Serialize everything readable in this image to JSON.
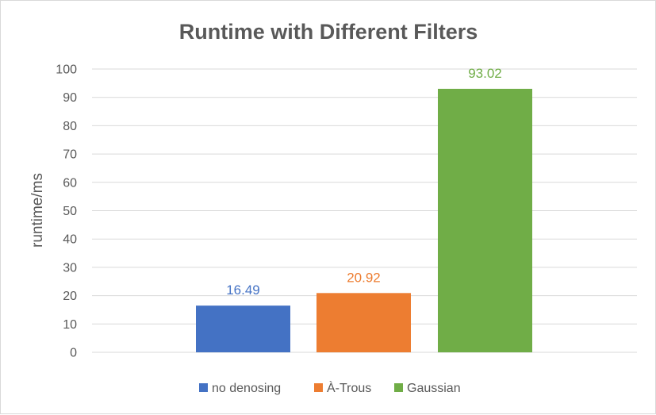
{
  "chart_data": {
    "type": "bar",
    "title": "Runtime with Different Filters",
    "xlabel": "",
    "ylabel": "runtime/ms",
    "ylim": [
      0,
      100
    ],
    "yticks": [
      0,
      10,
      20,
      30,
      40,
      50,
      60,
      70,
      80,
      90,
      100
    ],
    "grid": true,
    "legend_position": "bottom",
    "series": [
      {
        "name": "no denosing",
        "values": [
          16.49
        ],
        "color": "#4472C4",
        "label": "16.49"
      },
      {
        "name": "À-Trous",
        "values": [
          20.92
        ],
        "color": "#ED7D31",
        "label": "20.92"
      },
      {
        "name": "Gaussian",
        "values": [
          93.02
        ],
        "color": "#70AD47",
        "label": "93.02"
      }
    ]
  }
}
